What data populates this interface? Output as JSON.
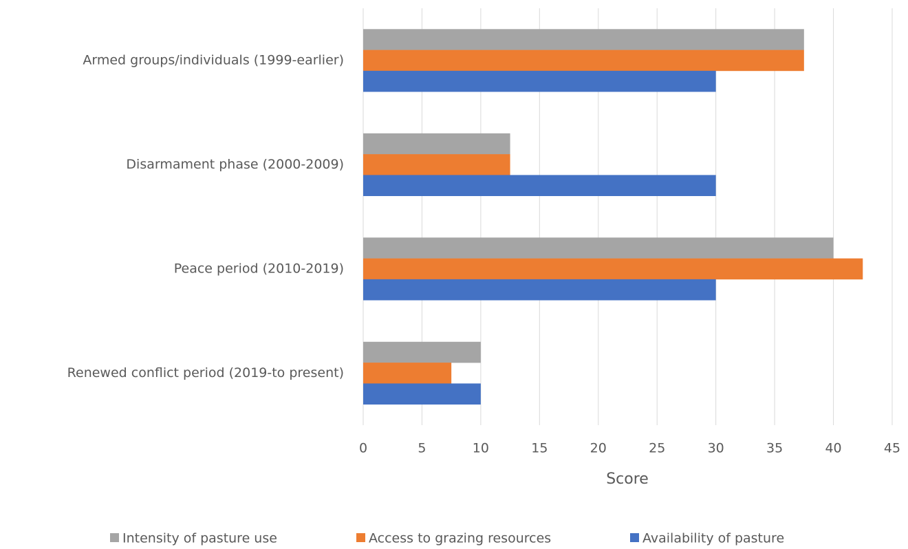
{
  "chart_data": {
    "type": "bar",
    "orientation": "horizontal",
    "xlabel": "Score",
    "categories": [
      "Armed groups/individuals (1999-earlier)",
      "Disarmament phase (2000-2009)",
      "Peace period (2010-2019)",
      "Renewed conflict period (2019-to present)"
    ],
    "series": [
      {
        "name": "Intensity of pasture use",
        "color": "#a5a5a5",
        "values": [
          37.5,
          12.5,
          40,
          10
        ]
      },
      {
        "name": "Access to grazing resources",
        "color": "#ed7d31",
        "values": [
          37.5,
          12.5,
          42.5,
          7.5
        ]
      },
      {
        "name": "Availability of pasture",
        "color": "#4472c4",
        "values": [
          30,
          30,
          30,
          10
        ]
      }
    ],
    "xlim": [
      0,
      45
    ],
    "xticks": [
      0,
      5,
      10,
      15,
      20,
      25,
      30,
      35,
      40,
      45
    ],
    "grid": true,
    "legend": "bottom"
  }
}
